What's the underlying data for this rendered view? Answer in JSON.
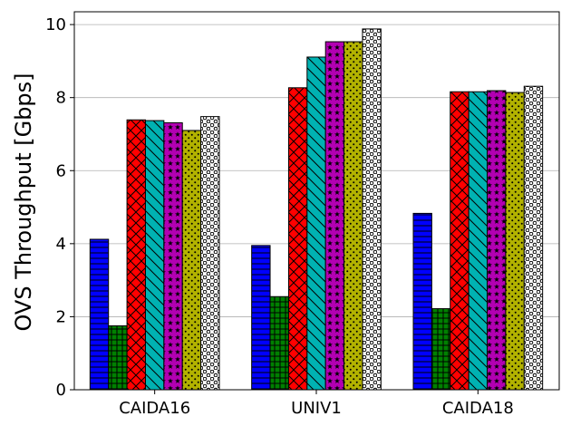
{
  "chart_data": {
    "type": "bar",
    "title": "",
    "xlabel": "",
    "ylabel": "OVS Throughput [Gbps]",
    "ylim": [
      0,
      10.35
    ],
    "yticks": [
      0,
      2,
      4,
      6,
      8,
      10
    ],
    "grid": "horizontal",
    "categories": [
      "CAIDA16",
      "UNIV1",
      "CAIDA18"
    ],
    "series": [
      {
        "values": [
          4.12,
          3.95,
          4.83
        ],
        "color": "#0000ff",
        "hatch": "horizontal"
      },
      {
        "values": [
          1.75,
          2.55,
          2.22
        ],
        "color": "#008000",
        "hatch": "grid"
      },
      {
        "values": [
          7.39,
          8.27,
          8.16
        ],
        "color": "#ff0000",
        "hatch": "crosshatch"
      },
      {
        "values": [
          7.37,
          9.11,
          8.16
        ],
        "color": "#00b2b2",
        "hatch": "diagonal"
      },
      {
        "values": [
          7.31,
          9.53,
          8.19
        ],
        "color": "#b200b2",
        "hatch": "stars"
      },
      {
        "values": [
          7.1,
          9.53,
          8.14
        ],
        "color": "#b2b200",
        "hatch": "dots"
      },
      {
        "values": [
          7.48,
          9.88,
          8.31
        ],
        "color": "#ffffff",
        "hatch": "circles"
      }
    ]
  }
}
